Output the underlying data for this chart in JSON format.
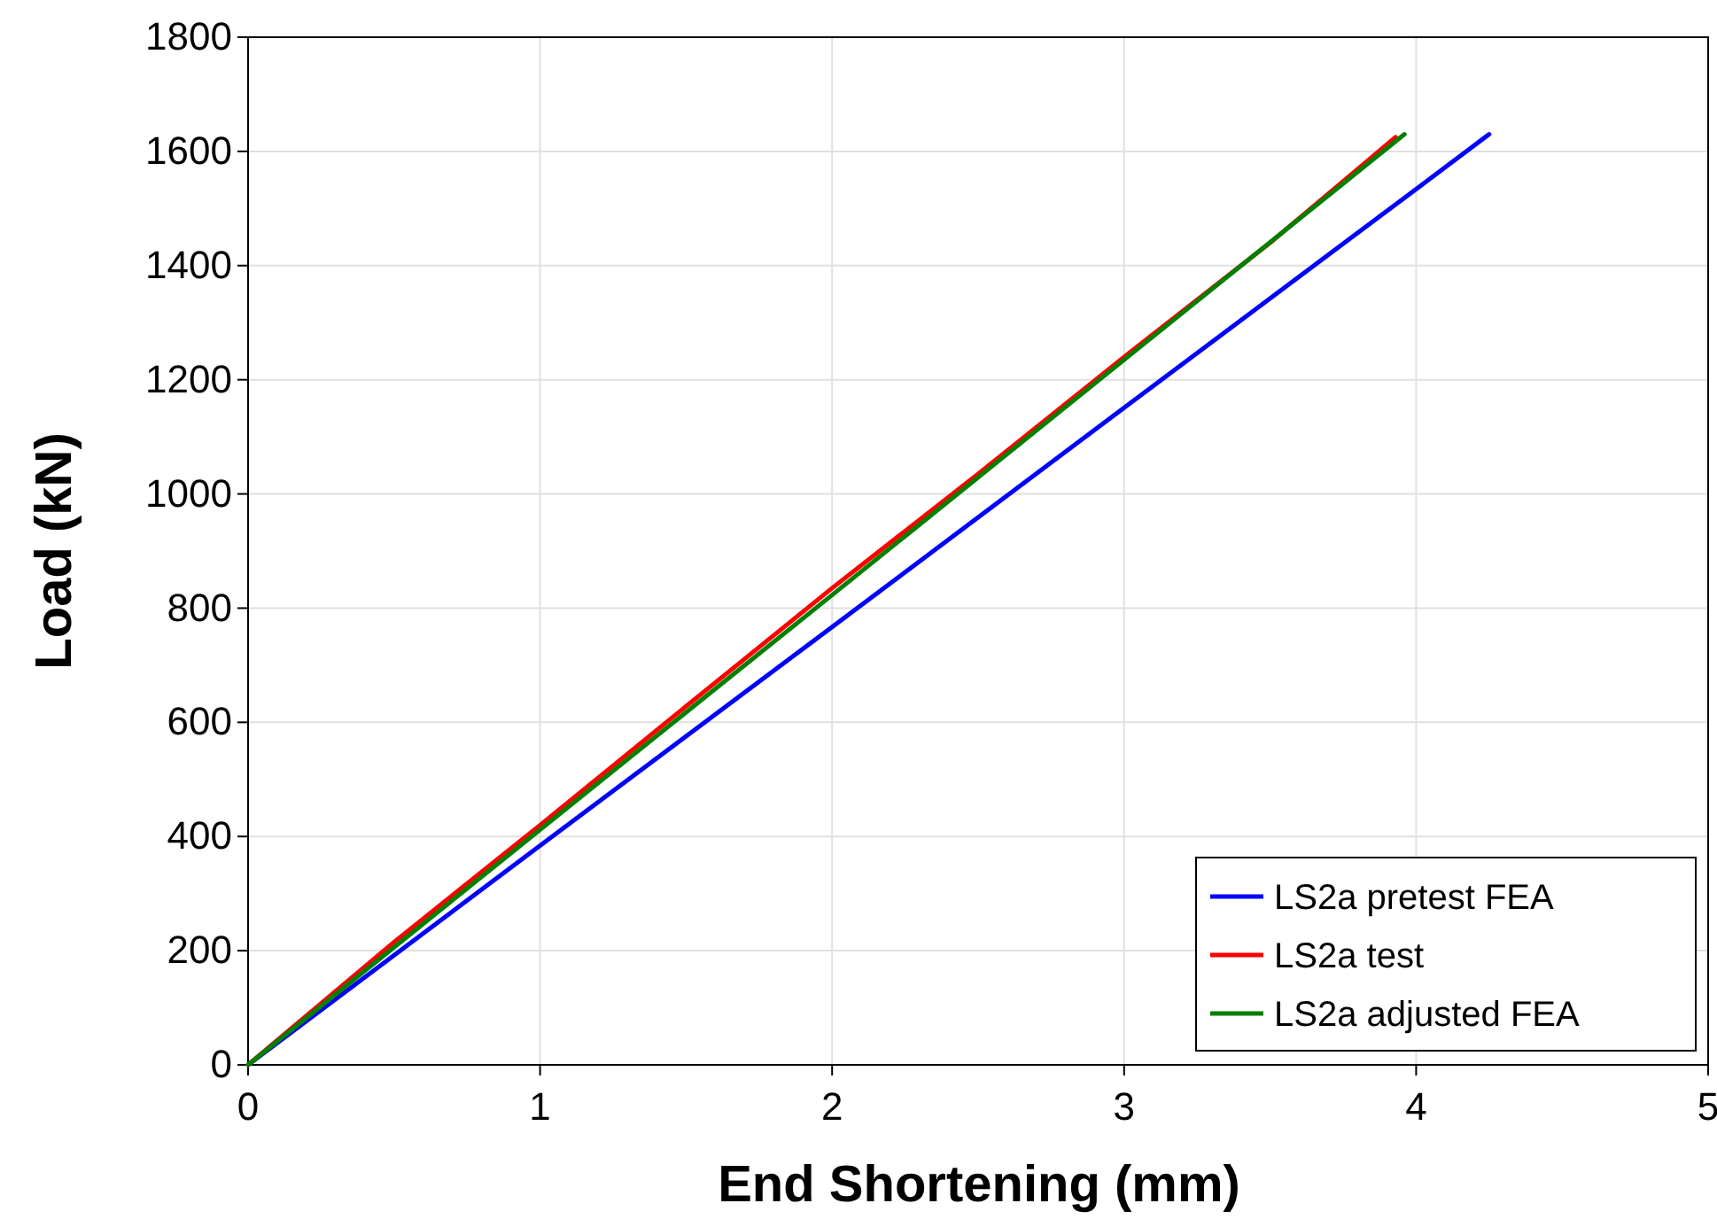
{
  "chart_data": {
    "type": "line",
    "xlabel": "End Shortening (mm)",
    "ylabel": "Load (kN)",
    "xlim": [
      0,
      5
    ],
    "xticks": [
      0,
      1,
      2,
      3,
      4,
      5
    ],
    "ylim": [
      0,
      1800
    ],
    "yticks": [
      0,
      200,
      400,
      600,
      800,
      1000,
      1200,
      1400,
      1600,
      1800
    ],
    "grid": true,
    "legend": "bottom right",
    "marker": "none",
    "line_style": "solid",
    "series": [
      {
        "name": "LS2a pretest FEA",
        "color": "#0000ff",
        "x": [
          0,
          1,
          2,
          3,
          4,
          4.25
        ],
        "values": [
          0,
          384,
          767,
          1151,
          1534,
          1630
        ]
      },
      {
        "name": "LS2a test",
        "color": "#ff0000",
        "x": [
          0,
          0.5,
          1,
          1.5,
          2,
          2.5,
          3,
          3.5,
          3.93
        ],
        "values": [
          0,
          215,
          420,
          628,
          835,
          1035,
          1240,
          1440,
          1625
        ]
      },
      {
        "name": "LS2a adjusted FEA",
        "color": "#008000",
        "x": [
          0,
          1,
          2,
          3,
          3.96
        ],
        "values": [
          0,
          412,
          823,
          1235,
          1630
        ]
      }
    ]
  }
}
